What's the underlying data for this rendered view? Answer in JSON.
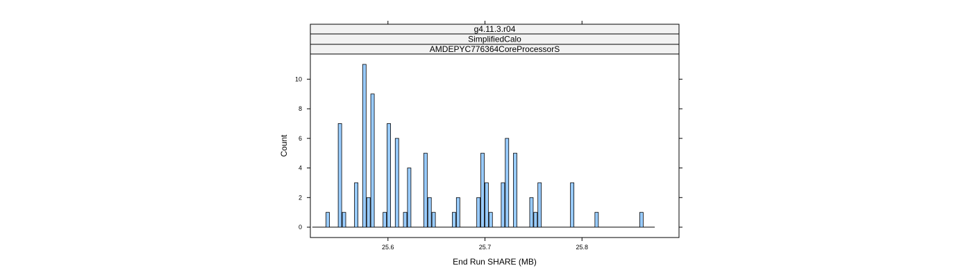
{
  "chart_data": {
    "type": "bar",
    "strips": [
      "g4.11.3.r04",
      "SimplifiedCalo",
      "AMDEPYC776364CoreProcessorS"
    ],
    "xlabel": "End Run SHARE (MB)",
    "ylabel": "Count",
    "xlim": [
      25.52,
      25.9
    ],
    "ylim": [
      -0.7,
      11.7
    ],
    "x_ticks": [
      25.6,
      25.7,
      25.8
    ],
    "y_ticks": [
      0,
      2,
      4,
      6,
      8,
      10
    ],
    "baseline_range": [
      25.522,
      25.875
    ],
    "bin_width": 0.0042,
    "grid": false,
    "bar_color": "#99ccff",
    "x": [
      25.5379,
      25.5505,
      25.5547,
      25.5673,
      25.5757,
      25.5799,
      25.5841,
      25.5967,
      25.6009,
      25.6093,
      25.6177,
      25.6219,
      25.6387,
      25.6429,
      25.6471,
      25.6681,
      25.6723,
      25.6933,
      25.6975,
      25.7017,
      25.7059,
      25.7185,
      25.7227,
      25.7311,
      25.7479,
      25.7521,
      25.7563,
      25.7899,
      25.8151,
      25.8613
    ],
    "values": [
      1,
      7,
      1,
      3,
      11,
      2,
      9,
      1,
      7,
      6,
      1,
      4,
      5,
      2,
      1,
      1,
      2,
      2,
      5,
      3,
      1,
      3,
      6,
      5,
      2,
      1,
      3,
      3,
      1,
      1
    ]
  }
}
